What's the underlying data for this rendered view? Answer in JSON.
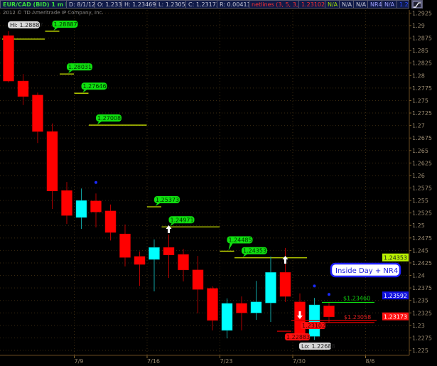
{
  "header": {
    "symbol": "EUR/CAD (BID) 1 m D",
    "date": "D: 8/1/12",
    "open": "O: 1.2339",
    "high": "H: 1.23469",
    "low": "L: 1.23058",
    "close": "C: 1.23173",
    "range": "R: 0.00411",
    "study": "netlines (3, 5, 3, 0)",
    "study_value": "1.23102",
    "na1": "N/A",
    "na2": "N/A",
    "na3": "N/A",
    "nr4": "NR4",
    "na4": "N/A",
    "last": "1.2",
    "colors": {
      "symbol": "#3cdc3c",
      "study": "#ff3030",
      "na1": "#a0e000",
      "last": "#3050ff"
    }
  },
  "copyright": "2012 © TD Ameritrade IP Company, Inc.",
  "chart_data": {
    "type": "candlestick",
    "ylim": [
      1.2235,
      1.2945
    ],
    "grid": true,
    "y_ticks": [
      "1.2925",
      "1.29",
      "1.2875",
      "1.285",
      "1.2825",
      "1.28",
      "1.2775",
      "1.275",
      "1.2725",
      "1.27",
      "1.2675",
      "1.265",
      "1.2625",
      "1.26",
      "1.2575",
      "1.255",
      "1.2525",
      "1.25",
      "1.2475",
      "1.245",
      "1.2425",
      "1.24",
      "1.2375",
      "1.235",
      "1.2325",
      "1.23",
      "1.2275",
      "1.225"
    ],
    "x_ticks": [
      "7/9",
      "7/16",
      "7/23",
      "7/30",
      "8/6"
    ],
    "candles": [
      {
        "o": 1.288,
        "h": 1.28887,
        "l": 1.2786,
        "c": 1.2789
      },
      {
        "o": 1.2789,
        "h": 1.2803,
        "l": 1.2741,
        "c": 1.2758
      },
      {
        "o": 1.2761,
        "h": 1.2766,
        "l": 1.2665,
        "c": 1.2688
      },
      {
        "o": 1.2688,
        "h": 1.2704,
        "l": 1.2533,
        "c": 1.2569
      },
      {
        "o": 1.257,
        "h": 1.2587,
        "l": 1.2503,
        "c": 1.252
      },
      {
        "o": 1.2516,
        "h": 1.2574,
        "l": 1.2493,
        "c": 1.255
      },
      {
        "o": 1.2549,
        "h": 1.2564,
        "l": 1.2496,
        "c": 1.2527
      },
      {
        "o": 1.2529,
        "h": 1.2542,
        "l": 1.247,
        "c": 1.2486
      },
      {
        "o": 1.2483,
        "h": 1.2502,
        "l": 1.2418,
        "c": 1.2436
      },
      {
        "o": 1.2438,
        "h": 1.2448,
        "l": 1.2379,
        "c": 1.2422
      },
      {
        "o": 1.2432,
        "h": 1.2472,
        "l": 1.2368,
        "c": 1.2456
      },
      {
        "o": 1.2456,
        "h": 1.2482,
        "l": 1.2395,
        "c": 1.2441
      },
      {
        "o": 1.2442,
        "h": 1.2453,
        "l": 1.2388,
        "c": 1.2411
      },
      {
        "o": 1.2411,
        "h": 1.2439,
        "l": 1.2324,
        "c": 1.2372
      },
      {
        "o": 1.2374,
        "h": 1.2378,
        "l": 1.229,
        "c": 1.231
      },
      {
        "o": 1.229,
        "h": 1.2354,
        "l": 1.2274,
        "c": 1.2344
      },
      {
        "o": 1.2344,
        "h": 1.2358,
        "l": 1.229,
        "c": 1.2325
      },
      {
        "o": 1.2325,
        "h": 1.2389,
        "l": 1.2311,
        "c": 1.2347
      },
      {
        "o": 1.2345,
        "h": 1.2438,
        "l": 1.2307,
        "c": 1.2406
      },
      {
        "o": 1.2406,
        "h": 1.2455,
        "l": 1.2347,
        "c": 1.2358
      },
      {
        "o": 1.2347,
        "h": 1.2364,
        "l": 1.22688,
        "c": 1.2283
      },
      {
        "o": 1.2278,
        "h": 1.2355,
        "l": 1.2271,
        "c": 1.2341
      },
      {
        "o": 1.2339,
        "h": 1.23469,
        "l": 1.23058,
        "c": 1.23173
      }
    ],
    "up_color": "#00ffff",
    "down_color": "#ff0000",
    "levels": [
      {
        "price": 1.28887,
        "label": "1.28887"
      },
      {
        "price": 1.28031,
        "label": "1.28031"
      },
      {
        "price": 1.27646,
        "label": "1.27646"
      },
      {
        "price": 1.27008,
        "label": "1.27008"
      },
      {
        "price": 1.25373,
        "label": "1.25373"
      },
      {
        "price": 1.24971,
        "label": "1.24971"
      },
      {
        "price": 1.24485,
        "label": "1.24485"
      },
      {
        "price": 1.24353,
        "label": "1.24353"
      }
    ],
    "hi_label": "Hi: 1.28887",
    "lo_label": "Lo: 1.22688",
    "low_marks": [
      {
        "price": 1.23102,
        "label": "1.23102"
      },
      {
        "price": 1.22883,
        "label": "1.22883"
      }
    ],
    "target_up": {
      "price": 1.2346,
      "label": "$1.23460"
    },
    "target_down": {
      "price": 1.23058,
      "label": "$1.23058"
    },
    "dots": [
      1.2586,
      1.2379,
      1.2362
    ],
    "signal_label": "Inside Day + NR4",
    "price_badges": [
      {
        "price": 1.24353,
        "label": "1.24353",
        "color": "#b8f000"
      },
      {
        "price": 1.23592,
        "label": "1.23592",
        "color": "#1010e0"
      },
      {
        "price": 1.23173,
        "label": "1.23173",
        "color": "#ff1010"
      }
    ]
  }
}
